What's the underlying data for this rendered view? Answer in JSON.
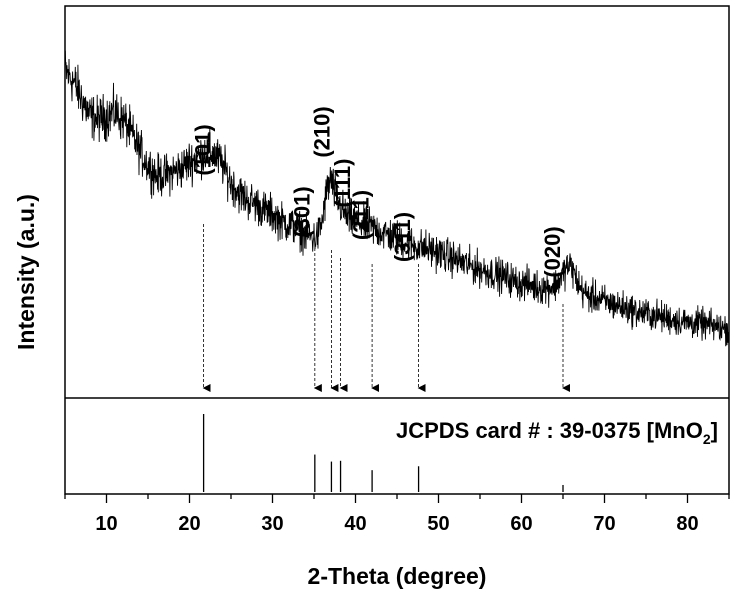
{
  "chart_data": {
    "type": "line",
    "xlabel": "2-Theta (degree)",
    "ylabel": "Intensity (a.u.)",
    "xlim": [
      5,
      85
    ],
    "xticks": [
      "10",
      "20",
      "30",
      "40",
      "50",
      "60",
      "70",
      "80"
    ],
    "y_ticks_shown": false,
    "grid": false,
    "series": [
      {
        "x": [
          5,
          6,
          7,
          8,
          9,
          10,
          11,
          12,
          13,
          14,
          15,
          16,
          17,
          18,
          19,
          20,
          21,
          22,
          23,
          24,
          25,
          26,
          27,
          28,
          29,
          30,
          31,
          32,
          33,
          34,
          35,
          35.5,
          36,
          36.5,
          37,
          37.5,
          38,
          39,
          40,
          41,
          42,
          43,
          44,
          45,
          46,
          47,
          48,
          50,
          52,
          54,
          56,
          58,
          60,
          61,
          62,
          63,
          64,
          64.5,
          65,
          65.5,
          66,
          66.5,
          67,
          68,
          69,
          70,
          72,
          74,
          76,
          78,
          80,
          82,
          85
        ],
        "y": [
          93,
          90,
          85,
          80,
          79,
          80,
          81,
          79,
          75,
          70,
          66,
          63,
          63,
          64,
          65,
          67,
          68,
          70,
          69,
          66,
          61,
          58,
          56,
          55,
          53,
          52,
          50,
          49,
          48,
          46,
          45,
          46,
          50,
          58,
          62,
          58,
          55,
          51,
          50,
          49,
          48,
          47,
          46,
          45,
          44,
          43,
          42.5,
          41,
          39,
          37,
          35.5,
          34,
          32,
          32,
          31,
          31,
          31.5,
          33,
          35,
          37,
          37,
          34,
          31,
          28.5,
          28,
          27,
          25.5,
          24,
          23,
          22,
          21,
          20.5,
          19
        ]
      }
    ],
    "peak_labels": [
      {
        "hkl": "(101)",
        "x": 21.7
      },
      {
        "hkl": "(301)",
        "x": 35.1
      },
      {
        "hkl": "(210)",
        "x": 37.1
      },
      {
        "hkl": "(111)",
        "x": 38.2
      },
      {
        "hkl": "(211)",
        "x": 42.0
      },
      {
        "hkl": "(311)",
        "x": 47.6
      },
      {
        "hkl": "(020)",
        "x": 65.0
      }
    ],
    "reference": {
      "card_text": "JCPDS card # : 39-0375 [MnO",
      "card_subscript": "2",
      "card_close": "]",
      "sticks": [
        {
          "x": 21.7,
          "intensity": 100
        },
        {
          "x": 35.1,
          "intensity": 48
        },
        {
          "x": 37.1,
          "intensity": 39
        },
        {
          "x": 38.2,
          "intensity": 40
        },
        {
          "x": 42.0,
          "intensity": 28
        },
        {
          "x": 47.6,
          "intensity": 33
        },
        {
          "x": 65.0,
          "intensity": 9
        }
      ]
    }
  }
}
